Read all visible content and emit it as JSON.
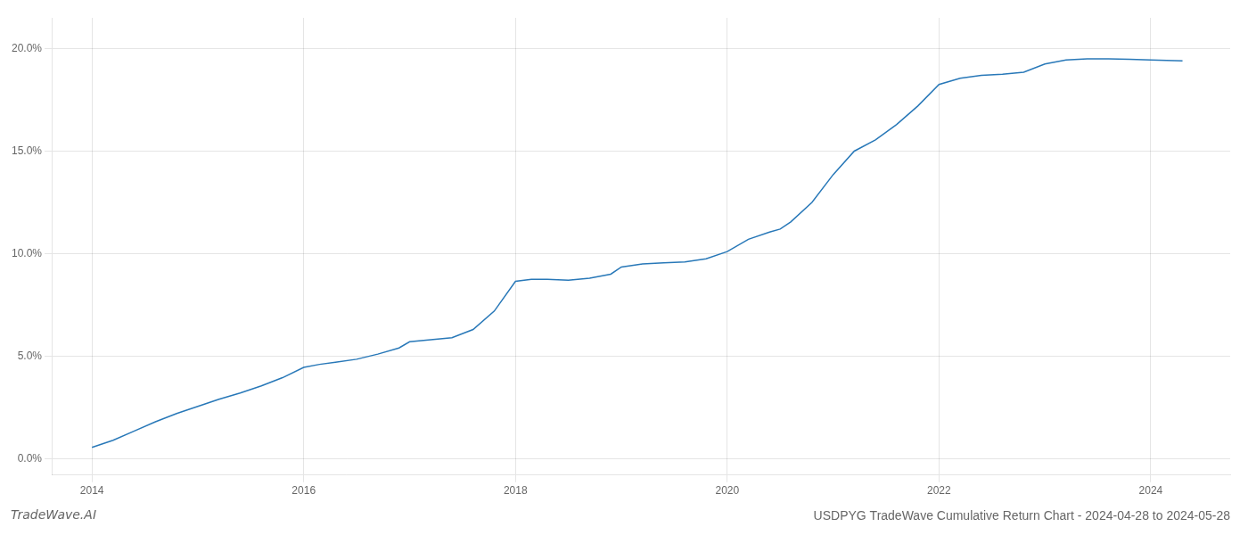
{
  "chart_data": {
    "type": "line",
    "title": "USDPYG TradeWave Cumulative Return Chart - 2024-04-28 to 2024-05-28",
    "annotations": [
      "TradeWave.AI"
    ],
    "x": [
      2014.0,
      2014.2,
      2014.4,
      2014.6,
      2014.8,
      2015.0,
      2015.2,
      2015.4,
      2015.6,
      2015.8,
      2016.0,
      2016.15,
      2016.3,
      2016.5,
      2016.7,
      2016.9,
      2017.0,
      2017.2,
      2017.4,
      2017.6,
      2017.8,
      2018.0,
      2018.15,
      2018.3,
      2018.5,
      2018.7,
      2018.9,
      2019.0,
      2019.2,
      2019.4,
      2019.6,
      2019.8,
      2020.0,
      2020.2,
      2020.4,
      2020.5,
      2020.6,
      2020.8,
      2021.0,
      2021.2,
      2021.4,
      2021.6,
      2021.8,
      2022.0,
      2022.2,
      2022.4,
      2022.6,
      2022.8,
      2023.0,
      2023.2,
      2023.4,
      2023.6,
      2023.8,
      2024.0,
      2024.3
    ],
    "values": [
      0.55,
      0.9,
      1.35,
      1.8,
      2.2,
      2.55,
      2.9,
      3.2,
      3.55,
      3.95,
      4.45,
      4.6,
      4.7,
      4.85,
      5.1,
      5.4,
      5.7,
      5.8,
      5.9,
      6.3,
      7.2,
      8.65,
      8.75,
      8.75,
      8.7,
      8.8,
      9.0,
      9.35,
      9.5,
      9.55,
      9.6,
      9.75,
      10.1,
      10.7,
      11.05,
      11.2,
      11.55,
      12.5,
      13.85,
      15.0,
      15.55,
      16.3,
      17.2,
      18.25,
      18.55,
      18.7,
      18.75,
      18.85,
      19.25,
      19.45,
      19.5,
      19.5,
      19.48,
      19.45,
      19.4
    ],
    "color": "#2878b8",
    "xlim": [
      2013.62,
      2024.75
    ],
    "xticks": [
      2014,
      2016,
      2018,
      2020,
      2022,
      2024
    ],
    "ylim": [
      -0.8,
      21.5
    ],
    "yticks": [
      {
        "value": 0.0,
        "label": "0.0%"
      },
      {
        "value": 5.0,
        "label": "5.0%"
      },
      {
        "value": 10.0,
        "label": "10.0%"
      },
      {
        "value": 15.0,
        "label": "15.0%"
      },
      {
        "value": 20.0,
        "label": "20.0%"
      }
    ],
    "grid": true
  }
}
